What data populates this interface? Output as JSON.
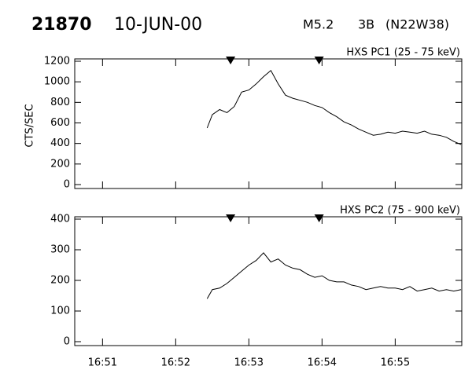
{
  "header": {
    "event": "21870",
    "date": "10-JUN-00",
    "class": "M5.2",
    "optical": "3B",
    "location": "(N22W38)"
  },
  "chart_data": [
    {
      "type": "line",
      "title": "HXS PC1 (25 - 75 keV)",
      "y_label": "CTS/SEC",
      "xlim": [
        0.62,
        5.91
      ],
      "ylim": [
        0,
        1200
      ],
      "yticks": [
        0,
        200,
        400,
        600,
        800,
        1000,
        1200
      ],
      "markers": [
        2.75,
        3.96
      ],
      "color": "#000000",
      "x": [
        2.43,
        2.5,
        2.6,
        2.7,
        2.8,
        2.9,
        3.0,
        3.1,
        3.2,
        3.3,
        3.4,
        3.5,
        3.6,
        3.7,
        3.8,
        3.9,
        4.0,
        4.1,
        4.2,
        4.3,
        4.4,
        4.5,
        4.6,
        4.7,
        4.8,
        4.9,
        5.0,
        5.1,
        5.2,
        5.3,
        5.4,
        5.5,
        5.6,
        5.7,
        5.8,
        5.9
      ],
      "values": [
        550,
        680,
        730,
        700,
        760,
        900,
        920,
        980,
        1050,
        1110,
        980,
        870,
        840,
        820,
        800,
        770,
        750,
        700,
        660,
        610,
        580,
        540,
        510,
        480,
        490,
        510,
        500,
        520,
        510,
        500,
        520,
        490,
        480,
        460,
        420,
        390
      ]
    },
    {
      "type": "line",
      "title": "HXS PC2 (75 - 900 keV)",
      "xlim": [
        0.62,
        5.91
      ],
      "ylim": [
        0,
        400
      ],
      "yticks": [
        0,
        100,
        200,
        300,
        400
      ],
      "xticks": [
        {
          "value": 1,
          "label": "16:51"
        },
        {
          "value": 2,
          "label": "16:52"
        },
        {
          "value": 3,
          "label": "16:53"
        },
        {
          "value": 4,
          "label": "16:54"
        },
        {
          "value": 5,
          "label": "16:55"
        }
      ],
      "markers": [
        2.75,
        3.96
      ],
      "color": "#000000",
      "x": [
        2.43,
        2.5,
        2.6,
        2.7,
        2.8,
        2.9,
        3.0,
        3.1,
        3.2,
        3.3,
        3.4,
        3.5,
        3.6,
        3.7,
        3.8,
        3.9,
        4.0,
        4.1,
        4.2,
        4.3,
        4.4,
        4.5,
        4.6,
        4.7,
        4.8,
        4.9,
        5.0,
        5.1,
        5.2,
        5.3,
        5.4,
        5.5,
        5.6,
        5.7,
        5.8,
        5.9
      ],
      "values": [
        140,
        170,
        175,
        190,
        210,
        230,
        250,
        265,
        290,
        260,
        270,
        250,
        240,
        235,
        220,
        210,
        215,
        200,
        195,
        195,
        185,
        180,
        170,
        175,
        180,
        175,
        175,
        170,
        180,
        165,
        170,
        175,
        165,
        170,
        165,
        170
      ]
    }
  ]
}
